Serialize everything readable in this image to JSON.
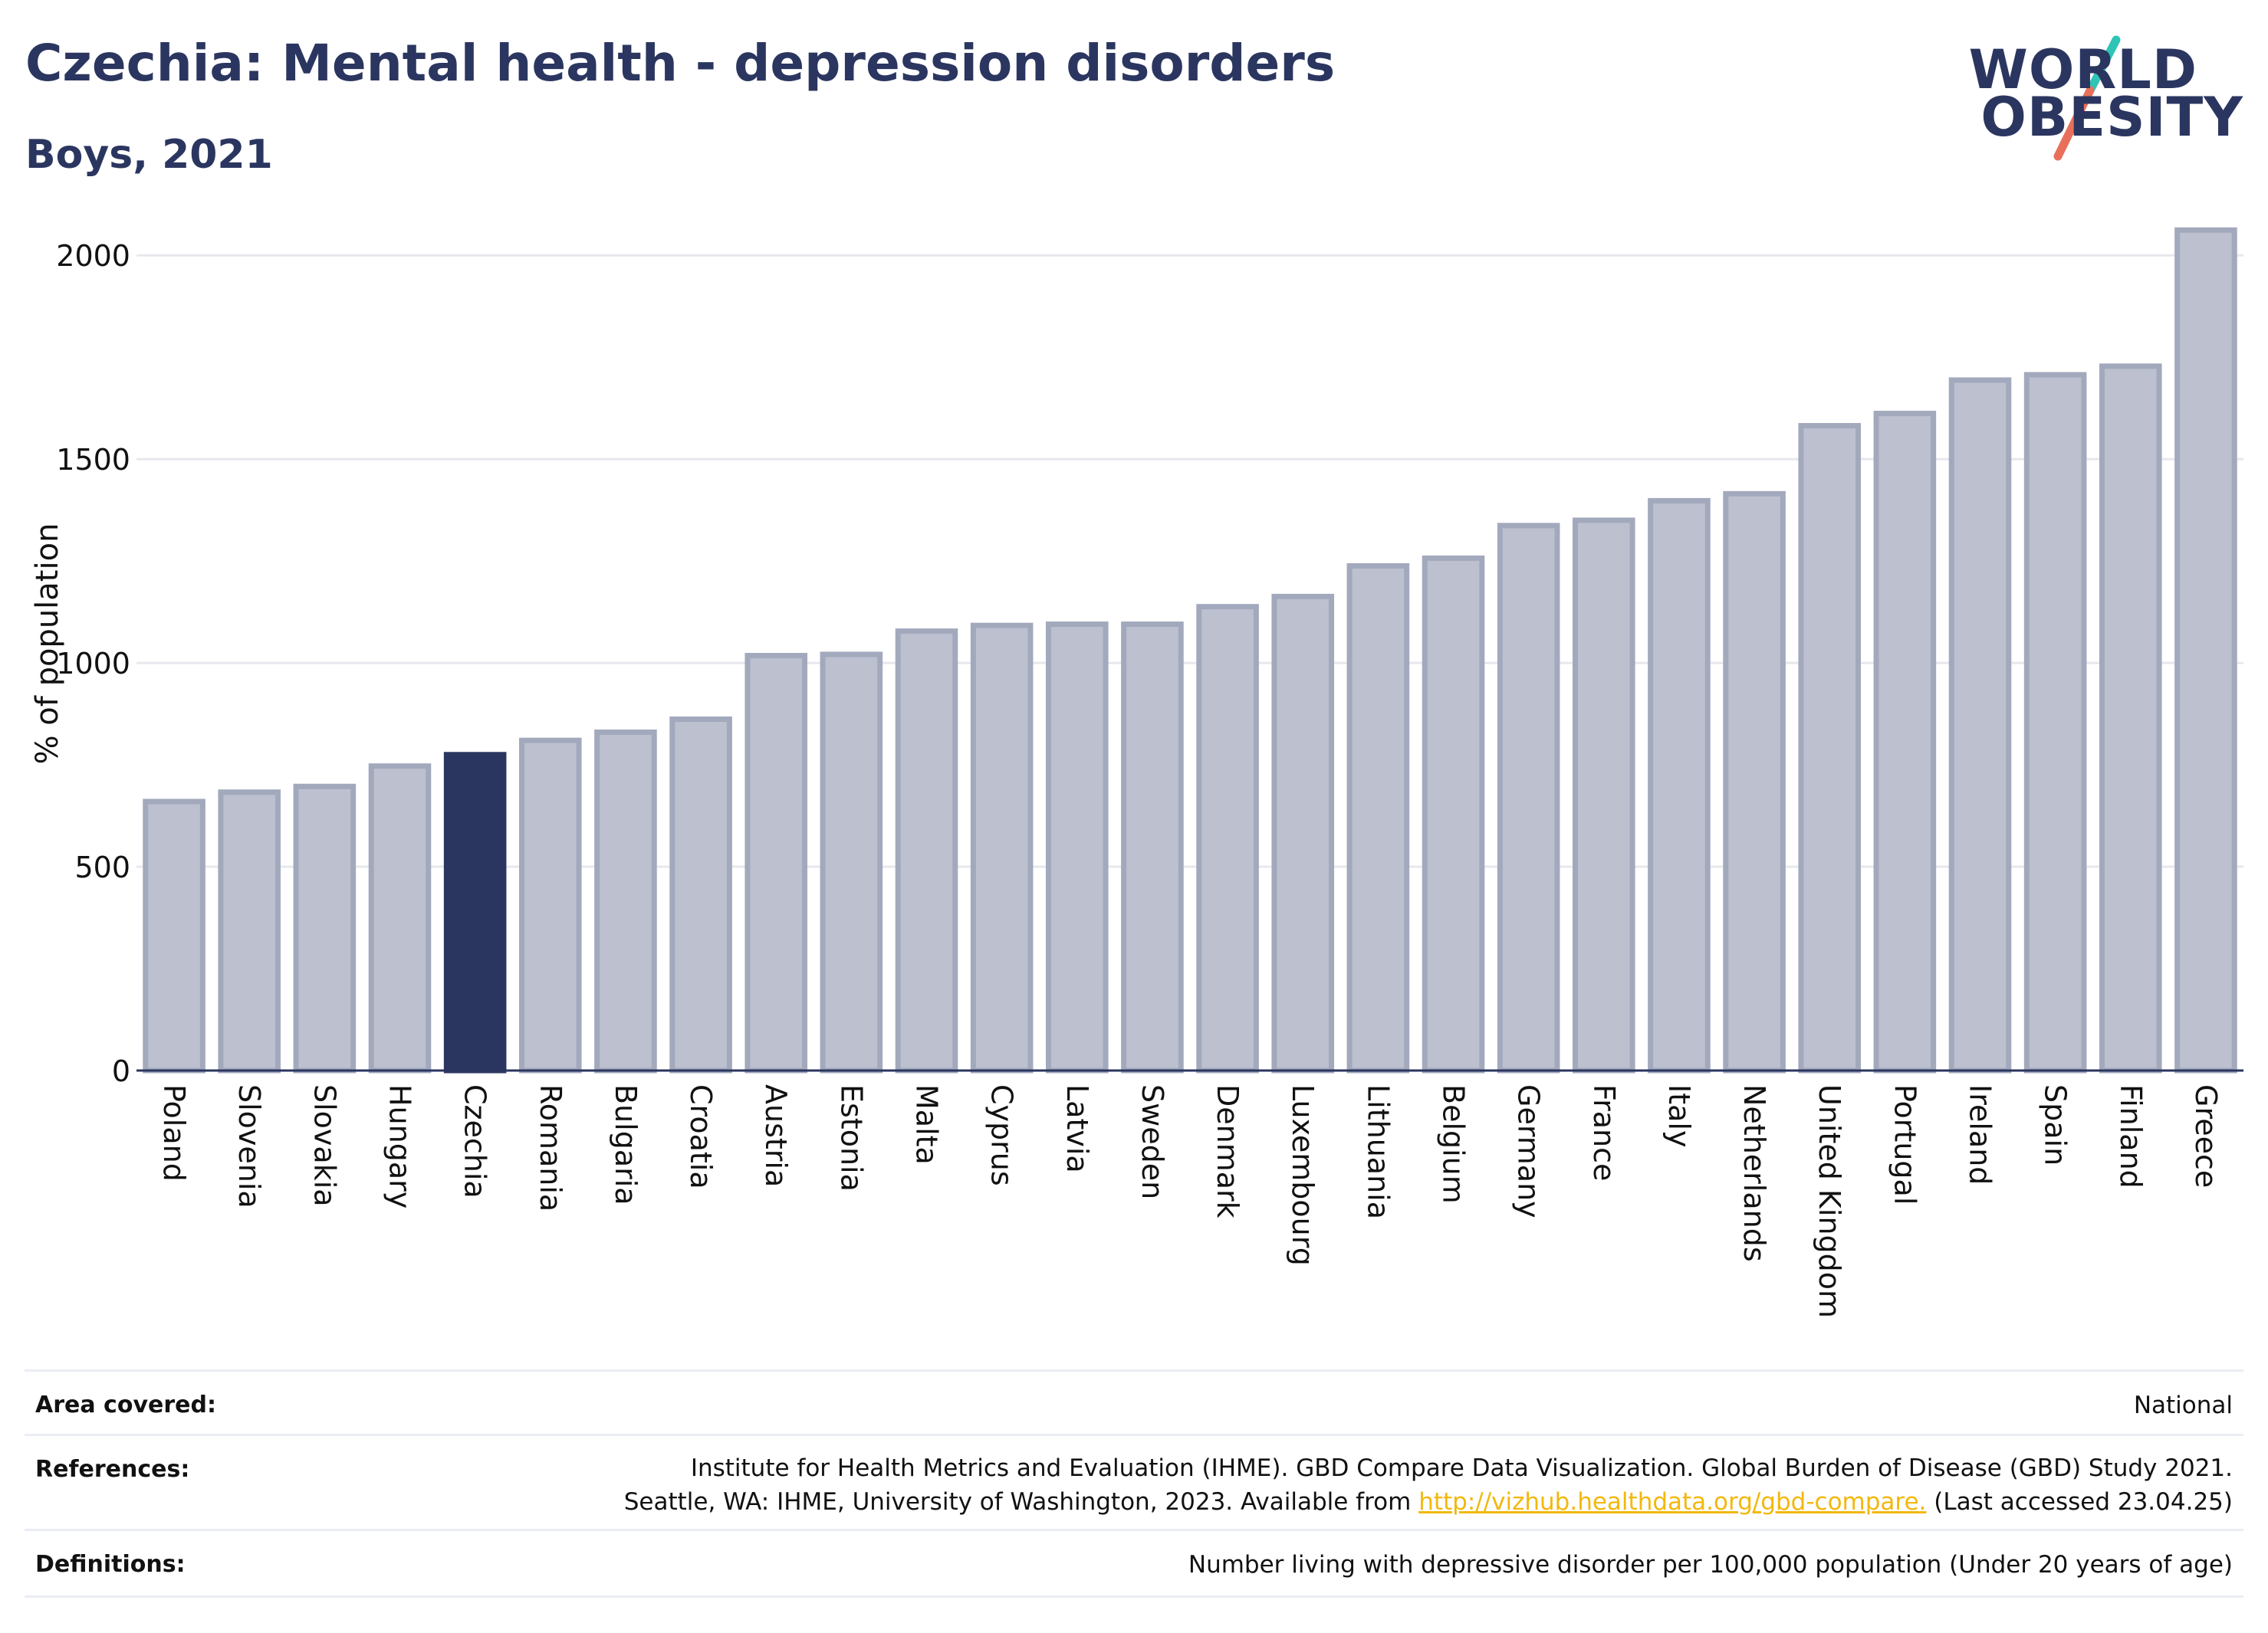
{
  "header": {
    "title": "Czechia: Mental health - depression disorders",
    "subtitle": "Boys, 2021"
  },
  "logo": {
    "line1": "WORLD",
    "line2": "OBESITY",
    "slash_colors": [
      "#2ec4b6",
      "#e8705a"
    ]
  },
  "colors": {
    "highlight": "#2b3660",
    "bar_fill": "#bcc0cf",
    "bar_stroke": "#a3a9bd",
    "grid": "#e6e8ee",
    "axis": "#2b3660",
    "link": "#f2b80e"
  },
  "chart_data": {
    "type": "bar",
    "title": "Czechia: Mental health - depression disorders",
    "subtitle": "Boys, 2021",
    "xlabel": "",
    "ylabel": "% of population",
    "ylim": [
      0,
      2100
    ],
    "yticks": [
      0,
      500,
      1000,
      1500,
      2000
    ],
    "grid": true,
    "highlight": "Czechia",
    "categories": [
      "Poland",
      "Slovenia",
      "Slovakia",
      "Hungary",
      "Czechia",
      "Romania",
      "Bulgaria",
      "Croatia",
      "Austria",
      "Estonia",
      "Malta",
      "Cyprus",
      "Latvia",
      "Sweden",
      "Denmark",
      "Luxembourg",
      "Lithuania",
      "Belgium",
      "Germany",
      "France",
      "Italy",
      "Netherlands",
      "United Kingdom",
      "Portugal",
      "Ireland",
      "Spain",
      "Finland",
      "Greece"
    ],
    "values": [
      660,
      683,
      697,
      747,
      775,
      810,
      830,
      862,
      1018,
      1021,
      1078,
      1092,
      1095,
      1095,
      1138,
      1163,
      1238,
      1257,
      1337,
      1350,
      1398,
      1415,
      1582,
      1612,
      1694,
      1707,
      1728,
      2062
    ]
  },
  "footer": {
    "area_label": "Area covered:",
    "area_value": "National",
    "references_label": "References:",
    "references_line1": "Institute for Health Metrics and Evaluation (IHME). GBD Compare Data Visualization. Global Burden of Disease (GBD) Study 2021.",
    "references_line2_pre": "Seattle, WA: IHME, University of Washington, 2023. Available from ",
    "references_link": "http://vizhub.healthdata.org/gbd-compare.",
    "references_line2_post": " (Last accessed 23.04.25)",
    "definitions_label": "Definitions:",
    "definitions_value": "Number living with depressive disorder per 100,000 population (Under 20 years of age)"
  }
}
